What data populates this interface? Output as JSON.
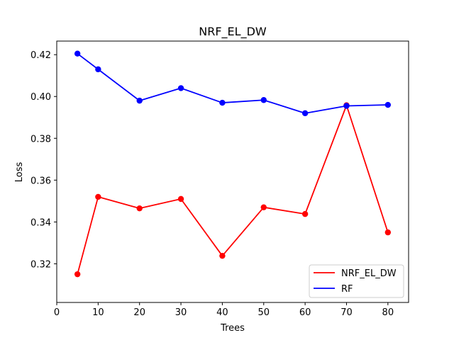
{
  "chart_data": {
    "type": "line",
    "title": "NRF_EL_DW",
    "xlabel": "Trees",
    "ylabel": "Loss",
    "x": [
      5,
      10,
      20,
      30,
      40,
      50,
      60,
      70,
      80
    ],
    "xlim": [
      0,
      85
    ],
    "ylim": [
      0.3015,
      0.4265
    ],
    "xticks": [
      0,
      10,
      20,
      30,
      40,
      50,
      60,
      70,
      80
    ],
    "yticks": [
      0.32,
      0.34,
      0.36,
      0.38,
      0.4,
      0.42
    ],
    "ytick_labels": [
      "0.32",
      "0.34",
      "0.36",
      "0.38",
      "0.40",
      "0.42"
    ],
    "grid": false,
    "legend_position": "lower-right",
    "series": [
      {
        "name": "NRF_EL_DW",
        "color": "#ff0000",
        "values": [
          0.315,
          0.352,
          0.3465,
          0.351,
          0.3238,
          0.347,
          0.3438,
          0.3958,
          0.335
        ]
      },
      {
        "name": "RF",
        "color": "#0000ff",
        "values": [
          0.4205,
          0.413,
          0.398,
          0.404,
          0.397,
          0.3983,
          0.392,
          0.3955,
          0.396
        ]
      }
    ]
  }
}
